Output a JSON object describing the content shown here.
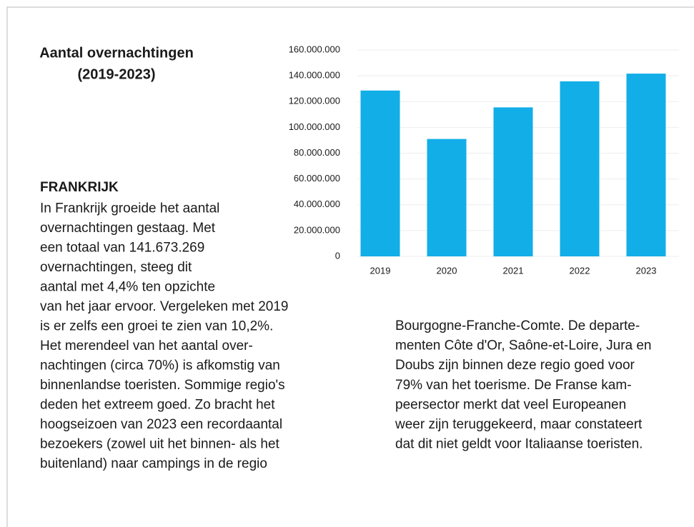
{
  "chart_data": {
    "type": "bar",
    "categories": [
      "2019",
      "2020",
      "2021",
      "2022",
      "2023"
    ],
    "values": [
      128560000,
      91000000,
      115500000,
      135700000,
      141673269
    ],
    "color": "#12aee8",
    "ylim": [
      0,
      160000000
    ],
    "yticks": [
      0,
      {
        "value": 20000000,
        "label": "20.000.000"
      },
      {
        "value": 40000000,
        "label": "40.000.000"
      },
      {
        "value": 60000000,
        "label": "60.000.000"
      },
      {
        "value": 80000000,
        "label": "80.000.000"
      },
      {
        "value": 100000000,
        "label": "100.000.000"
      },
      {
        "value": 120000000,
        "label": "120.000.000"
      },
      {
        "value": 140000000,
        "label": "140.000.000"
      },
      {
        "value": 160000000,
        "label": "160.000.000"
      }
    ],
    "grid": true
  },
  "document": {
    "title_lines": [
      "Aantal overnachtingen",
      "(2019-2023)"
    ],
    "heading": "FRANKRIJK",
    "left_lines": [
      "In Frankrijk groeide het aantal",
      "overnachtingen gestaag. Met",
      "een totaal van 141.673.269",
      "overnachtingen, steeg dit",
      "aantal met 4,4% ten opzichte",
      "van het jaar ervoor. Vergeleken met 2019",
      "is er zelfs een groei te zien van 10,2%.",
      "Het merendeel van het aantal over-",
      "nachtingen (circa 70%) is afkomstig van",
      "binnenlandse toeristen. Sommige regio's",
      "deden het extreem goed. Zo bracht het",
      "hoogseizoen van 2023 een recordaantal",
      "bezoekers (zowel uit het binnen- als het",
      "buitenland) naar campings in de regio"
    ],
    "right_lines": [
      "Bourgogne-Franche-Comte. De departe-",
      "menten Côte d'Or, Saône-et-Loire, Jura en",
      "Doubs zijn binnen deze regio goed voor",
      "79% van het toerisme. De Franse kam-",
      "peersector merkt dat veel Europeanen",
      "weer zijn teruggekeerd, maar constateert",
      "dat dit niet geldt voor Italiaanse toeristen."
    ]
  }
}
